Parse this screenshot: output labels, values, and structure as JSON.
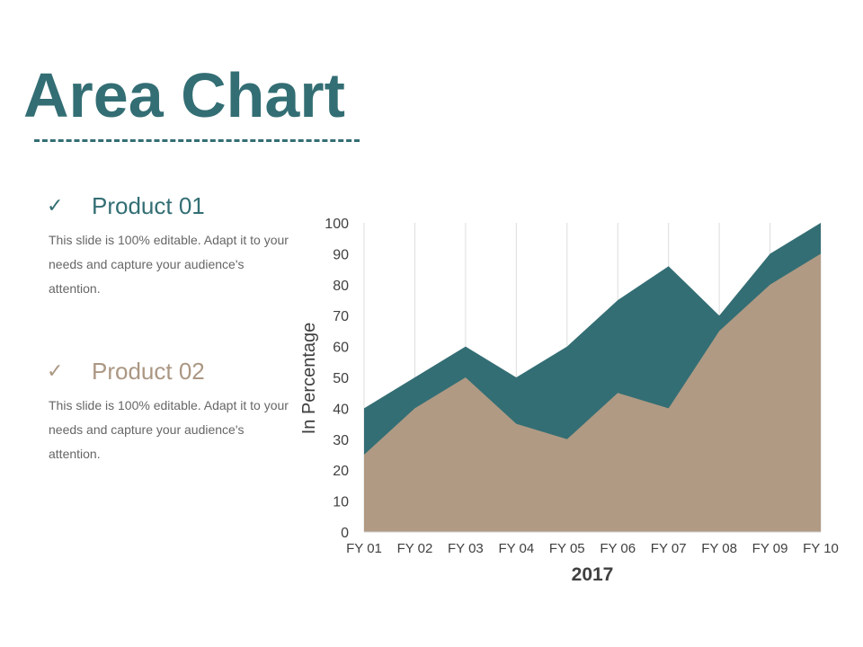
{
  "title": "Area Chart",
  "colors": {
    "accent": "#336e74",
    "secondary": "#b09a84",
    "secondary_text": "#ab9783"
  },
  "legend": [
    {
      "check_icon": "check-icon",
      "check": "✓",
      "name": "Product 01",
      "description": "This slide is 100% editable. Adapt it to your needs and capture your audience's attention."
    },
    {
      "check_icon": "check-icon",
      "check": "✓",
      "name": "Product 02",
      "description": "This slide is 100% editable. Adapt it to your needs and capture your audience's attention."
    }
  ],
  "chart_data": {
    "type": "area",
    "categories": [
      "FY 01",
      "FY 02",
      "FY 03",
      "FY 04",
      "FY 05",
      "FY 06",
      "FY 07",
      "FY 08",
      "FY 09",
      "FY 10"
    ],
    "series": [
      {
        "name": "Product 01",
        "color": "#336e74",
        "values": [
          40,
          50,
          60,
          50,
          60,
          75,
          86,
          70,
          90,
          100
        ]
      },
      {
        "name": "Product 02",
        "color": "#b09a84",
        "values": [
          25,
          40,
          50,
          35,
          30,
          45,
          40,
          65,
          80,
          90
        ]
      }
    ],
    "ylabel": "In Percentage",
    "xlabel": "2017",
    "ylim": [
      0,
      100
    ],
    "yticks": [
      0,
      10,
      20,
      30,
      40,
      50,
      60,
      70,
      80,
      90,
      100
    ],
    "grid": "vertical"
  }
}
